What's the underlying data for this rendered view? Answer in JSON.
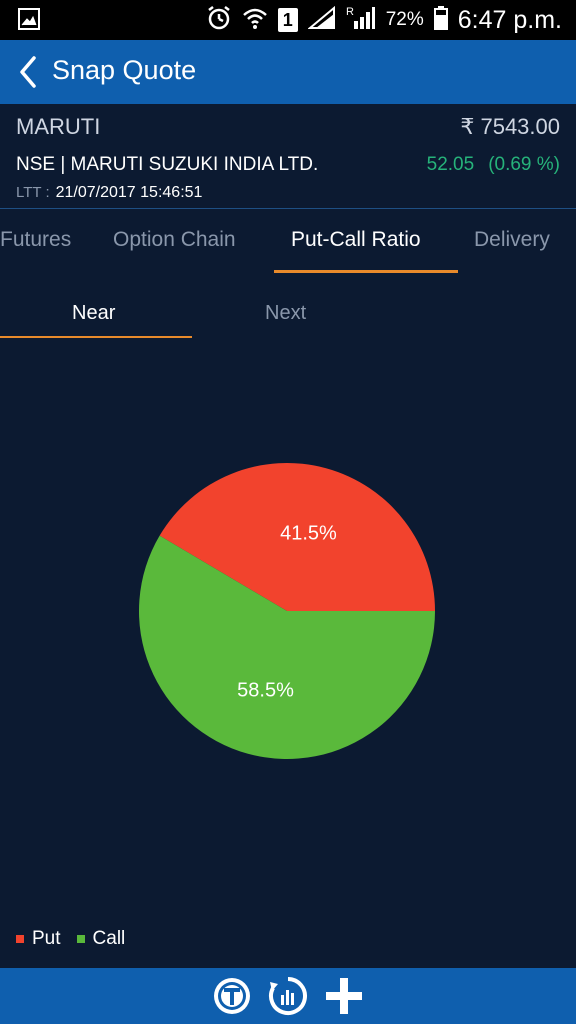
{
  "status_bar": {
    "battery_percent": "72%",
    "time": "6:47 p.m.",
    "sim_label": "1",
    "icons": [
      "gallery-icon",
      "alarm-icon",
      "wifi-icon",
      "signal-icon",
      "battery-icon"
    ]
  },
  "app_bar": {
    "title": "Snap Quote",
    "back_icon": "chevron-left-icon"
  },
  "quote": {
    "symbol": "MARUTI",
    "price": "₹ 7543.00",
    "exchange_name": "NSE | MARUTI SUZUKI INDIA LTD.",
    "change": "52.05",
    "change_percent": "(0.69 %)",
    "ltt_label": "LTT :",
    "ltt_value": "21/07/2017 15:46:51"
  },
  "tabs": [
    {
      "label": "Futures"
    },
    {
      "label": "Option Chain"
    },
    {
      "label": "Put-Call Ratio",
      "active": true
    },
    {
      "label": "Delivery"
    }
  ],
  "sub_tabs": [
    {
      "label": "Near",
      "active": true
    },
    {
      "label": "Next"
    }
  ],
  "chart_data": {
    "type": "pie",
    "slices": [
      {
        "label": "Put",
        "value": 41.5,
        "display": "41.5%",
        "color": "#f2432d"
      },
      {
        "label": "Call",
        "value": 58.5,
        "display": "58.5%",
        "color": "#5ab93b"
      }
    ],
    "legend": [
      "Put",
      "Call"
    ],
    "legend_position": "bottom-left"
  },
  "colors": {
    "background": "#0c1a31",
    "app_bar": "#0f5fae",
    "accent": "#e88a2b",
    "positive": "#26b37a"
  },
  "bottom_bar": {
    "icons": [
      "trade-icon",
      "refresh-chart-icon",
      "add-icon"
    ]
  }
}
